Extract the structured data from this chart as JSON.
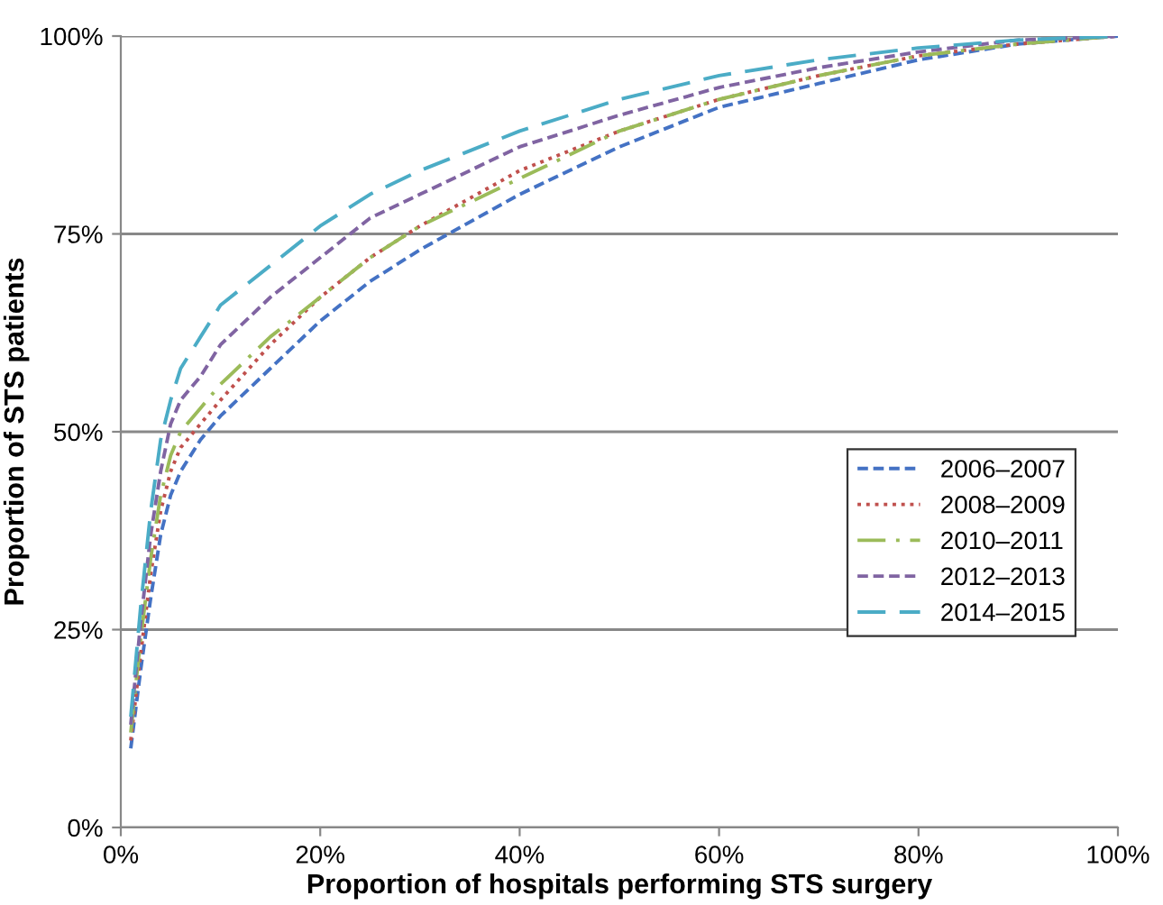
{
  "chart_data": {
    "type": "line",
    "xlabel": "Proportion of hospitals performing STS surgery",
    "ylabel": "Proportion of STS patients",
    "x": [
      1,
      2,
      3,
      4,
      5,
      6,
      8,
      10,
      15,
      20,
      25,
      30,
      40,
      50,
      60,
      70,
      80,
      90,
      100
    ],
    "series": [
      {
        "name": "2006–2007",
        "color": "#4472c4",
        "line_style": "dashed",
        "values": [
          10,
          20,
          29,
          37,
          42,
          45,
          49,
          52,
          58,
          64,
          69,
          73,
          80,
          86,
          91,
          94,
          97,
          99,
          100
        ]
      },
      {
        "name": "2008–2009",
        "color": "#c0504d",
        "line_style": "dotted",
        "values": [
          11,
          22,
          32,
          40,
          45,
          48,
          51,
          54,
          61,
          67,
          72,
          76,
          83,
          88,
          92,
          95,
          97.5,
          99,
          100
        ]
      },
      {
        "name": "2010–2011",
        "color": "#9bbb59",
        "line_style": "dashdot",
        "values": [
          12,
          24,
          34,
          42,
          47,
          50,
          53,
          56,
          62,
          67,
          72,
          76,
          82,
          88,
          92,
          95,
          97.5,
          99,
          100
        ]
      },
      {
        "name": "2012–2013",
        "color": "#8064a2",
        "line_style": "dashed",
        "values": [
          13,
          26,
          37,
          45,
          51,
          54,
          57,
          61,
          67,
          72,
          77,
          80,
          86,
          90,
          93.5,
          96,
          98,
          99.5,
          100
        ]
      },
      {
        "name": "2014–2015",
        "color": "#4bacc6",
        "line_style": "longdash",
        "values": [
          14,
          28,
          40,
          49,
          54,
          58,
          62,
          66,
          71,
          76,
          80,
          83,
          88,
          92,
          95,
          97,
          98.5,
          99.5,
          100
        ]
      }
    ],
    "xlim": [
      0,
      100
    ],
    "ylim": [
      0,
      100
    ],
    "xticks": [
      {
        "value": 0,
        "label": "0%"
      },
      {
        "value": 20,
        "label": "20%"
      },
      {
        "value": 40,
        "label": "40%"
      },
      {
        "value": 60,
        "label": "60%"
      },
      {
        "value": 80,
        "label": "80%"
      },
      {
        "value": 100,
        "label": "100%"
      }
    ],
    "yticks": [
      {
        "value": 0,
        "label": "0%"
      },
      {
        "value": 25,
        "label": "25%"
      },
      {
        "value": 50,
        "label": "50%"
      },
      {
        "value": 75,
        "label": "75%"
      },
      {
        "value": 100,
        "label": "100%"
      }
    ],
    "grid": "y",
    "legend": "right",
    "marker": "none"
  }
}
